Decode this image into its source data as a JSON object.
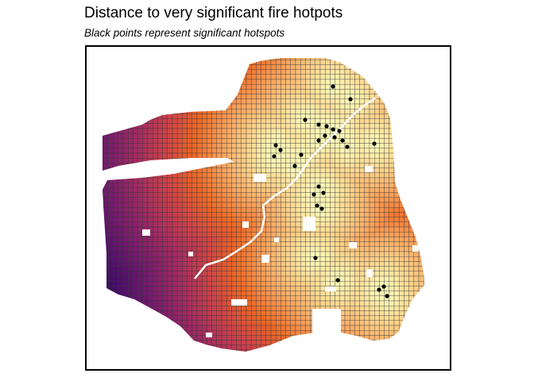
{
  "map": {
    "title": "Distance to very significant fire hotpots",
    "subtitle": "Black points represent significant hotspots",
    "palette": [
      "#1b0c41",
      "#4a0c6b",
      "#781c6d",
      "#a52c60",
      "#cf4446",
      "#ed6925",
      "#f8a25c",
      "#fcd68f",
      "#fcfdbf"
    ],
    "grid_line_color": "#333333",
    "hotspot_color": "#000000",
    "road_color": "#ffffff"
  }
}
